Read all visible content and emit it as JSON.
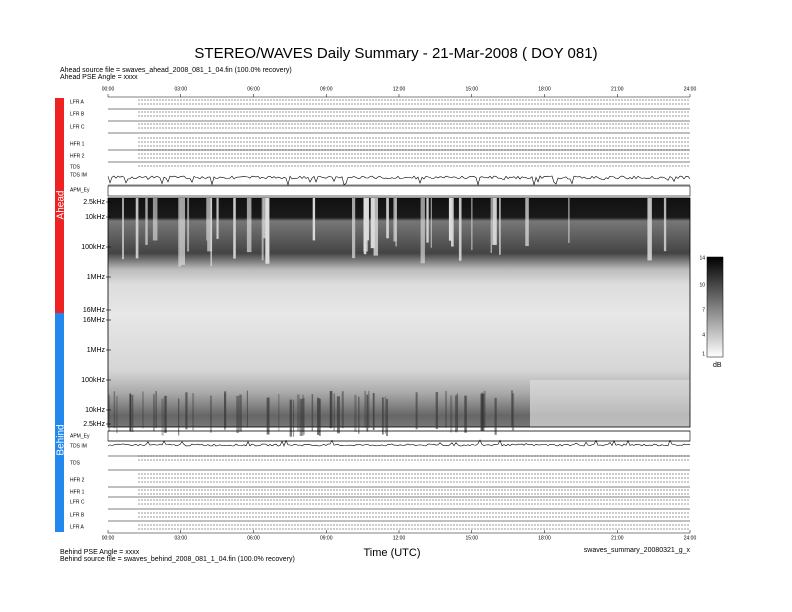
{
  "title": "STEREO/WAVES Daily Summary - 21-Mar-2008 ( DOY 081)",
  "ahead": {
    "source_file": "Ahead source file = swaves_ahead_2008_081_1_04.fin (100.0% recovery)",
    "pse_angle": "Ahead PSE Angle = xxxx",
    "side_label": "Ahead",
    "panels": [
      "LFR A",
      "LFR B",
      "LFR C",
      "HFR 1",
      "HFR 2",
      "TDS",
      "TDS IM",
      "APM_Ey"
    ],
    "frequency_labels": [
      "2.5kHz",
      "10kHz",
      "100kHz",
      "1MHz",
      "16MHz"
    ]
  },
  "behind": {
    "source_file": "Behind source file = swaves_behind_2008_081_1_04.fin (100.0% recovery)",
    "pse_angle": "Behind PSE Angle = xxxx",
    "side_label": "Behind",
    "panels": [
      "APM_Ey",
      "TDS IM",
      "TDS",
      "HFR 2",
      "HFR 1",
      "LFR C",
      "LFR B",
      "LFR A"
    ],
    "frequency_labels": [
      "16MHz",
      "1MHz",
      "100kHz",
      "10kHz",
      "2.5kHz"
    ]
  },
  "time_ticks": [
    "00:00",
    "03:00",
    "06:00",
    "09:00",
    "12:00",
    "15:00",
    "18:00",
    "21:00",
    "24:00"
  ],
  "x_axis_label": "Time (UTC)",
  "colorbar": {
    "ticks": [
      14,
      10,
      7,
      4,
      1
    ],
    "unit": "dB"
  },
  "footer": {
    "file": "swaves_summary_20080321_g_x"
  }
}
